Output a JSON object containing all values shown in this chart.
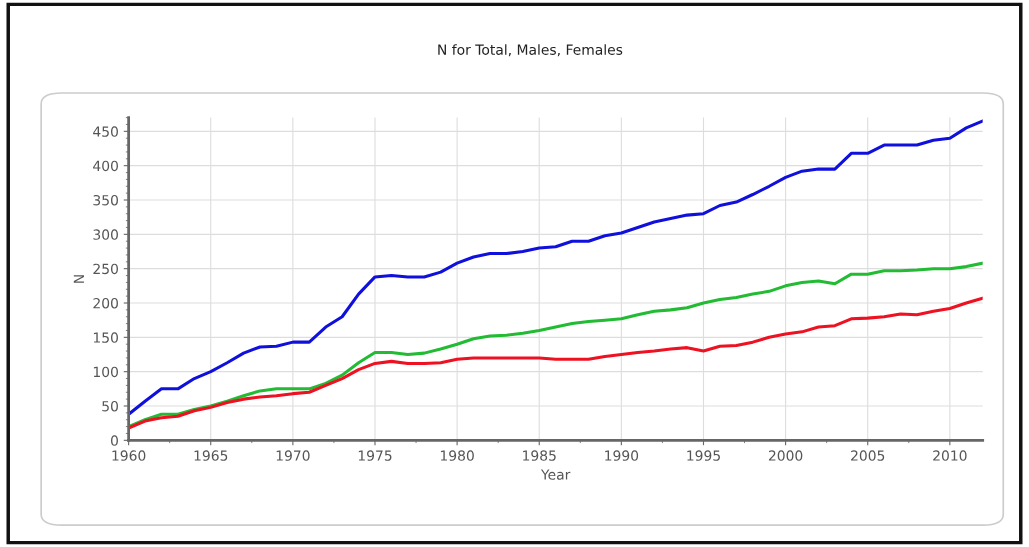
{
  "chart_data": {
    "type": "line",
    "title": "N for Total, Males, Females",
    "xlabel": "Year",
    "ylabel": "N",
    "x": [
      1960,
      1961,
      1962,
      1963,
      1964,
      1965,
      1966,
      1967,
      1968,
      1969,
      1970,
      1971,
      1972,
      1973,
      1974,
      1975,
      1976,
      1977,
      1978,
      1979,
      1980,
      1981,
      1982,
      1983,
      1984,
      1985,
      1986,
      1987,
      1988,
      1989,
      1990,
      1991,
      1992,
      1993,
      1994,
      1995,
      1996,
      1997,
      1998,
      1999,
      2000,
      2001,
      2002,
      2003,
      2004,
      2005,
      2006,
      2007,
      2008,
      2009,
      2010,
      2011,
      2012
    ],
    "series": [
      {
        "color": "#1010dd",
        "values": [
          38,
          57,
          75,
          75,
          90,
          100,
          113,
          127,
          136,
          137,
          143,
          143,
          165,
          180,
          213,
          238,
          240,
          238,
          238,
          245,
          258,
          267,
          272,
          272,
          275,
          280,
          282,
          290,
          290,
          298,
          302,
          310,
          318,
          323,
          328,
          330,
          342,
          347,
          358,
          370,
          383,
          392,
          395,
          395,
          418,
          418,
          430,
          430,
          430,
          437,
          440,
          455,
          465
        ]
      },
      {
        "color": "#22bb33",
        "values": [
          20,
          30,
          38,
          38,
          45,
          50,
          57,
          65,
          72,
          75,
          75,
          75,
          83,
          95,
          113,
          128,
          128,
          125,
          127,
          133,
          140,
          148,
          152,
          153,
          156,
          160,
          165,
          170,
          173,
          175,
          177,
          183,
          188,
          190,
          193,
          200,
          205,
          208,
          213,
          217,
          225,
          230,
          232,
          228,
          242,
          242,
          247,
          247,
          248,
          250,
          250,
          253,
          258
        ]
      },
      {
        "color": "#ee1122",
        "values": [
          18,
          28,
          33,
          35,
          43,
          48,
          55,
          60,
          63,
          65,
          68,
          70,
          80,
          90,
          103,
          112,
          115,
          112,
          112,
          113,
          118,
          120,
          120,
          120,
          120,
          120,
          118,
          118,
          118,
          122,
          125,
          128,
          130,
          133,
          135,
          130,
          137,
          138,
          143,
          150,
          155,
          158,
          165,
          167,
          177,
          178,
          180,
          184,
          183,
          188,
          192,
          200,
          207
        ]
      }
    ],
    "xlim": [
      1960,
      2012
    ],
    "xticks": [
      1960,
      1965,
      1970,
      1975,
      1980,
      1985,
      1990,
      1995,
      2000,
      2005,
      2010
    ],
    "ylim": [
      0,
      470
    ],
    "yticks": [
      0,
      50,
      100,
      150,
      200,
      250,
      300,
      350,
      400,
      450
    ],
    "grid": true,
    "marker": "none",
    "line_style": "solid"
  }
}
